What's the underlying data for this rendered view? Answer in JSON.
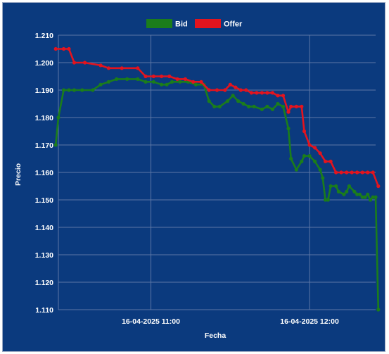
{
  "chart_data": {
    "type": "line",
    "title": "",
    "xlabel": "Fecha",
    "ylabel": "Precio",
    "ylim": [
      1.11,
      1.21
    ],
    "yticks": [
      "1.110",
      "1.120",
      "1.130",
      "1.140",
      "1.150",
      "1.160",
      "1.170",
      "1.180",
      "1.190",
      "1.200",
      "1.210"
    ],
    "xlim": [
      "10:25",
      "12:25"
    ],
    "xticks": [
      {
        "time": "11:00",
        "label": "16-04-2025 11:00"
      },
      {
        "time": "12:00",
        "label": "16-04-2025 12:00"
      }
    ],
    "grid": true,
    "legend_position": "top-center",
    "colors": {
      "background": "#0b3a7e",
      "grid": "#5d77a6",
      "Bid": "#1b7d1b",
      "Offer": "#e3141e"
    },
    "series": [
      {
        "name": "Bid",
        "color": "#1b7d1b",
        "x": [
          "10:24",
          "10:25",
          "10:27",
          "10:29",
          "10:31",
          "10:34",
          "10:38",
          "10:41",
          "10:44",
          "10:47",
          "10:51",
          "10:55",
          "10:58",
          "11:01",
          "11:04",
          "11:06",
          "11:08",
          "11:11",
          "11:14",
          "11:17",
          "11:20",
          "11:22",
          "11:24",
          "11:26",
          "11:29",
          "11:31",
          "11:33",
          "11:35",
          "11:37",
          "11:39",
          "11:42",
          "11:44",
          "11:46",
          "11:48",
          "11:50",
          "11:52",
          "11:53",
          "11:55",
          "11:57",
          "11:58",
          "12:00",
          "12:02",
          "12:04",
          "12:05",
          "12:06",
          "12:07",
          "12:08",
          "12:10",
          "12:11",
          "12:13",
          "12:14",
          "12:15",
          "12:17",
          "12:18",
          "12:19",
          "12:20",
          "12:21",
          "12:22",
          "12:23",
          "12:24",
          "12:25",
          "12:26"
        ],
        "values": [
          1.17,
          1.18,
          1.19,
          1.19,
          1.19,
          1.19,
          1.19,
          1.192,
          1.193,
          1.194,
          1.194,
          1.194,
          1.193,
          1.193,
          1.192,
          1.192,
          1.193,
          1.193,
          1.193,
          1.192,
          1.192,
          1.186,
          1.184,
          1.184,
          1.186,
          1.188,
          1.186,
          1.185,
          1.184,
          1.184,
          1.183,
          1.184,
          1.183,
          1.185,
          1.184,
          1.176,
          1.165,
          1.161,
          1.164,
          1.166,
          1.166,
          1.164,
          1.161,
          1.158,
          1.15,
          1.15,
          1.155,
          1.155,
          1.153,
          1.152,
          1.153,
          1.155,
          1.153,
          1.152,
          1.152,
          1.151,
          1.151,
          1.152,
          1.15,
          1.151,
          1.151,
          1.11
        ]
      },
      {
        "name": "Offer",
        "color": "#e3141e",
        "x": [
          "10:24",
          "10:27",
          "10:29",
          "10:31",
          "10:35",
          "10:41",
          "10:44",
          "10:49",
          "10:55",
          "10:58",
          "11:01",
          "11:04",
          "11:07",
          "11:10",
          "11:13",
          "11:16",
          "11:19",
          "11:22",
          "11:25",
          "11:28",
          "11:30",
          "11:32",
          "11:34",
          "11:36",
          "11:38",
          "11:40",
          "11:42",
          "11:44",
          "11:46",
          "11:48",
          "11:50",
          "11:52",
          "11:53",
          "11:55",
          "11:57",
          "11:58",
          "12:00",
          "12:02",
          "12:04",
          "12:06",
          "12:08",
          "12:10",
          "12:12",
          "12:14",
          "12:16",
          "12:18",
          "12:20",
          "12:22",
          "12:24",
          "12:26"
        ],
        "values": [
          1.205,
          1.205,
          1.205,
          1.2,
          1.2,
          1.199,
          1.198,
          1.198,
          1.198,
          1.195,
          1.195,
          1.195,
          1.195,
          1.194,
          1.194,
          1.193,
          1.193,
          1.19,
          1.19,
          1.19,
          1.192,
          1.191,
          1.19,
          1.19,
          1.189,
          1.189,
          1.189,
          1.189,
          1.189,
          1.188,
          1.188,
          1.182,
          1.184,
          1.184,
          1.184,
          1.175,
          1.17,
          1.169,
          1.167,
          1.164,
          1.164,
          1.16,
          1.16,
          1.16,
          1.16,
          1.16,
          1.16,
          1.16,
          1.16,
          1.155
        ]
      }
    ]
  }
}
